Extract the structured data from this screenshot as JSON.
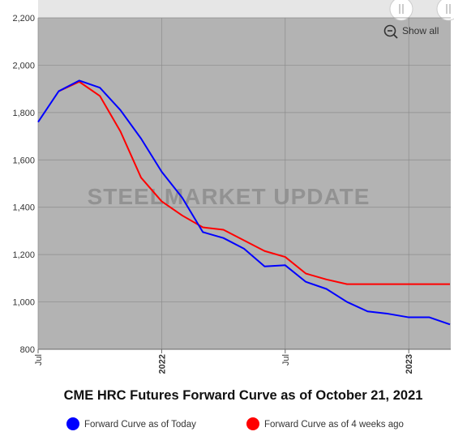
{
  "chart_data": {
    "type": "line",
    "title": "CME HRC Futures Forward Curve as of October 21, 2021",
    "watermark": "STEELMARKET UPDATE",
    "zoom_button": "Show all",
    "categories": [
      "Jul",
      null,
      null,
      null,
      null,
      null,
      "2022",
      null,
      null,
      null,
      null,
      null,
      "Jul",
      null,
      null,
      null,
      null,
      null,
      "2023",
      null,
      null
    ],
    "series": [
      {
        "name": "Forward Curve as of Today",
        "color": "#0000ff",
        "values": [
          1760,
          1890,
          1935,
          1905,
          1810,
          1690,
          1550,
          1440,
          1295,
          1270,
          1225,
          1150,
          1155,
          1085,
          1055,
          1000,
          960,
          950,
          935,
          935,
          905
        ]
      },
      {
        "name": "Forward Curve as of 4 weeks ago",
        "color": "#ff0000",
        "values": [
          null,
          1890,
          1930,
          1870,
          1720,
          1525,
          1425,
          1365,
          1315,
          1305,
          1260,
          1215,
          1190,
          1120,
          1095,
          1075,
          1075,
          1075,
          1075,
          1075,
          1075
        ]
      }
    ],
    "ylim": [
      800,
      2200
    ],
    "yticks": [
      800,
      {
        "value": 1000,
        "label": "1,000"
      },
      {
        "value": 1200,
        "label": "1,200"
      },
      {
        "value": 1400,
        "label": "1,400"
      },
      {
        "value": 1600,
        "label": "1,600"
      },
      {
        "value": 1800,
        "label": "1,800"
      },
      {
        "value": 2000,
        "label": "2,000"
      },
      {
        "value": 2200,
        "label": "2,200"
      }
    ],
    "grid": true
  }
}
